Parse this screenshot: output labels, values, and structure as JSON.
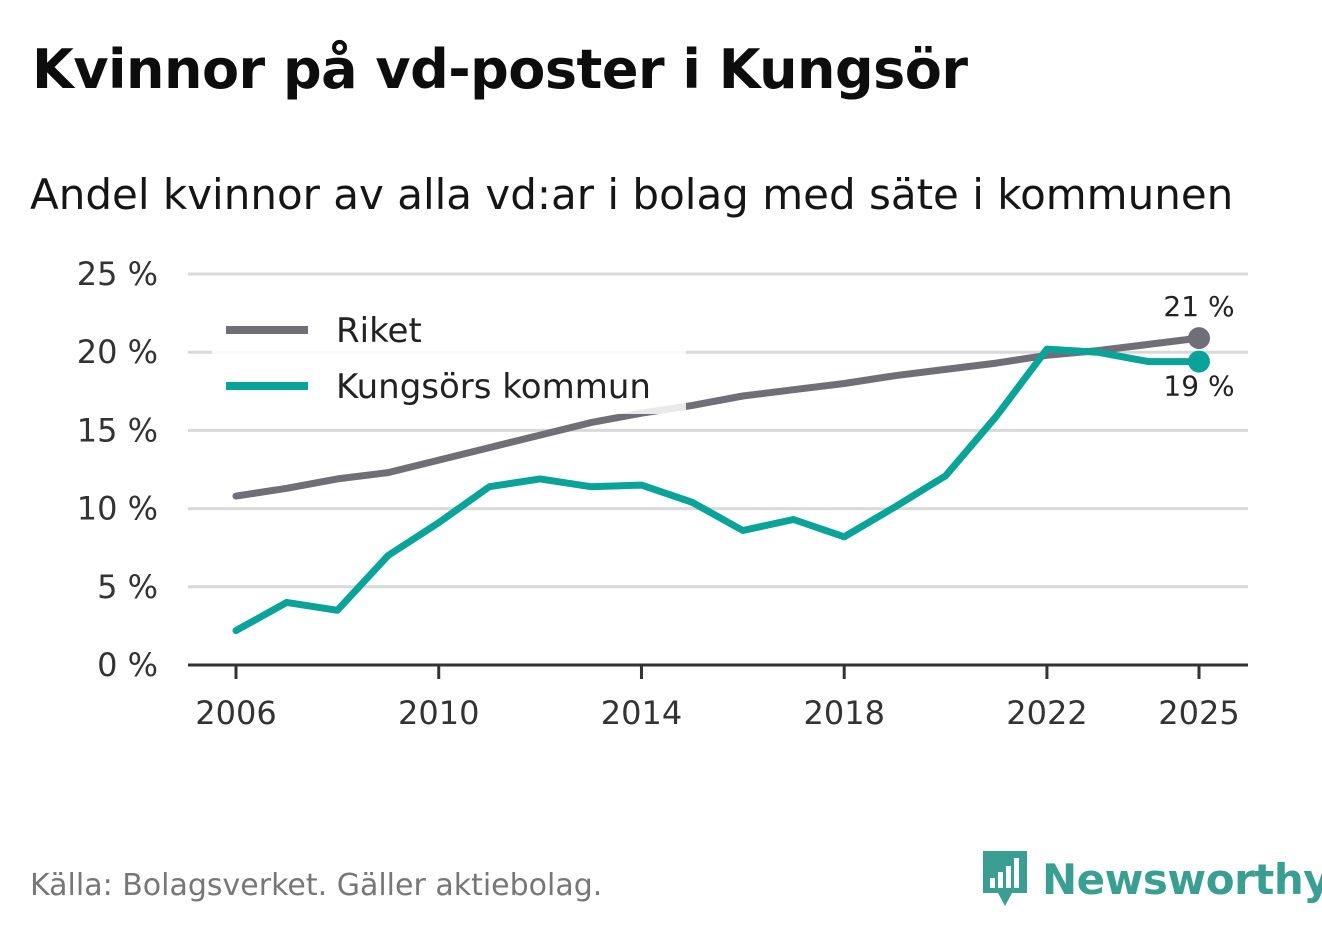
{
  "title": "Kvinnor på vd-poster i Kungsör",
  "subtitle": "Andel kvinnor av alla vd:ar i bolag med säte i kommunen",
  "source": "Källa: Bolagsverket. Gäller aktiebolag.",
  "brand": "Newsworthy",
  "colors": {
    "riket": "#706e76",
    "kommun": "#0aa39a",
    "grid": "#d9d9d9",
    "axis": "#333333",
    "brand": "#3a9e92"
  },
  "chart_data": {
    "type": "line",
    "title": "Kvinnor på vd-poster i Kungsör",
    "subtitle": "Andel kvinnor av alla vd:ar i bolag med säte i kommunen",
    "xlabel": "",
    "ylabel": "",
    "x": [
      2006,
      2007,
      2008,
      2009,
      2010,
      2011,
      2012,
      2013,
      2014,
      2015,
      2016,
      2017,
      2018,
      2019,
      2020,
      2021,
      2022,
      2023,
      2024,
      2025
    ],
    "xticks": [
      2006,
      2010,
      2014,
      2018,
      2022,
      2025
    ],
    "xtick_labels": [
      "2006",
      "2010",
      "2014",
      "2018",
      "2022",
      "2025"
    ],
    "ylim": [
      0,
      25
    ],
    "yticks": [
      0,
      5,
      10,
      15,
      20,
      25
    ],
    "ytick_labels": [
      "0 %",
      "5 %",
      "10 %",
      "15 %",
      "20 %",
      "25 %"
    ],
    "grid": true,
    "legend_position": "top-left",
    "series": [
      {
        "name": "Riket",
        "key": "riket",
        "values": [
          10.8,
          11.3,
          11.9,
          12.3,
          13.1,
          13.9,
          14.7,
          15.5,
          16.1,
          16.6,
          17.2,
          17.6,
          18.0,
          18.5,
          18.9,
          19.3,
          19.8,
          20.1,
          20.5,
          20.9
        ],
        "end_label": "21 %"
      },
      {
        "name": "Kungsörs kommun",
        "key": "kommun",
        "values": [
          2.2,
          4.0,
          3.5,
          7.0,
          9.1,
          11.4,
          11.9,
          11.4,
          11.5,
          10.4,
          8.6,
          9.3,
          8.2,
          10.1,
          12.1,
          15.9,
          20.2,
          20.0,
          19.4,
          19.4
        ],
        "end_label": "19 %"
      }
    ]
  }
}
